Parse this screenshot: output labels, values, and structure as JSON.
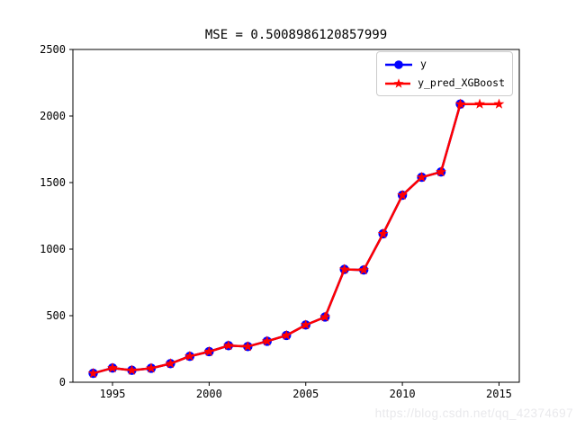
{
  "figure": {
    "title": "MSE = 0.5008986120857999",
    "watermark": "https://blog.csdn.net/qq_42374697"
  },
  "chart_data": {
    "type": "line",
    "title": "MSE = 0.5008986120857999",
    "xlabel": "",
    "ylabel": "",
    "xlim": [
      1992.95,
      2016.05
    ],
    "ylim": [
      0,
      2500
    ],
    "xticks": [
      1995,
      2000,
      2005,
      2010,
      2015
    ],
    "yticks": [
      0,
      500,
      1000,
      1500,
      2000,
      2500
    ],
    "grid": false,
    "legend_position": "upper right",
    "series": [
      {
        "name": "y",
        "color": "#0000ff",
        "marker": "circle",
        "x": [
          1994,
          1995,
          1996,
          1997,
          1998,
          1999,
          2000,
          2001,
          2002,
          2003,
          2004,
          2005,
          2006,
          2007,
          2008,
          2009,
          2010,
          2011,
          2012,
          2013
        ],
        "values": [
          67,
          107,
          90,
          105,
          140,
          195,
          230,
          275,
          268,
          308,
          352,
          430,
          490,
          848,
          843,
          1115,
          1405,
          1540,
          1580,
          2090
        ]
      },
      {
        "name": "y_pred_XGBoost",
        "color": "#ff0000",
        "marker": "star",
        "x": [
          1994,
          1995,
          1996,
          1997,
          1998,
          1999,
          2000,
          2001,
          2002,
          2003,
          2004,
          2005,
          2006,
          2007,
          2008,
          2009,
          2010,
          2011,
          2012,
          2013,
          2014,
          2015
        ],
        "values": [
          67,
          107,
          90,
          105,
          140,
          195,
          230,
          275,
          268,
          308,
          352,
          430,
          490,
          848,
          843,
          1115,
          1405,
          1540,
          1580,
          2090,
          2090,
          2090
        ]
      }
    ]
  }
}
